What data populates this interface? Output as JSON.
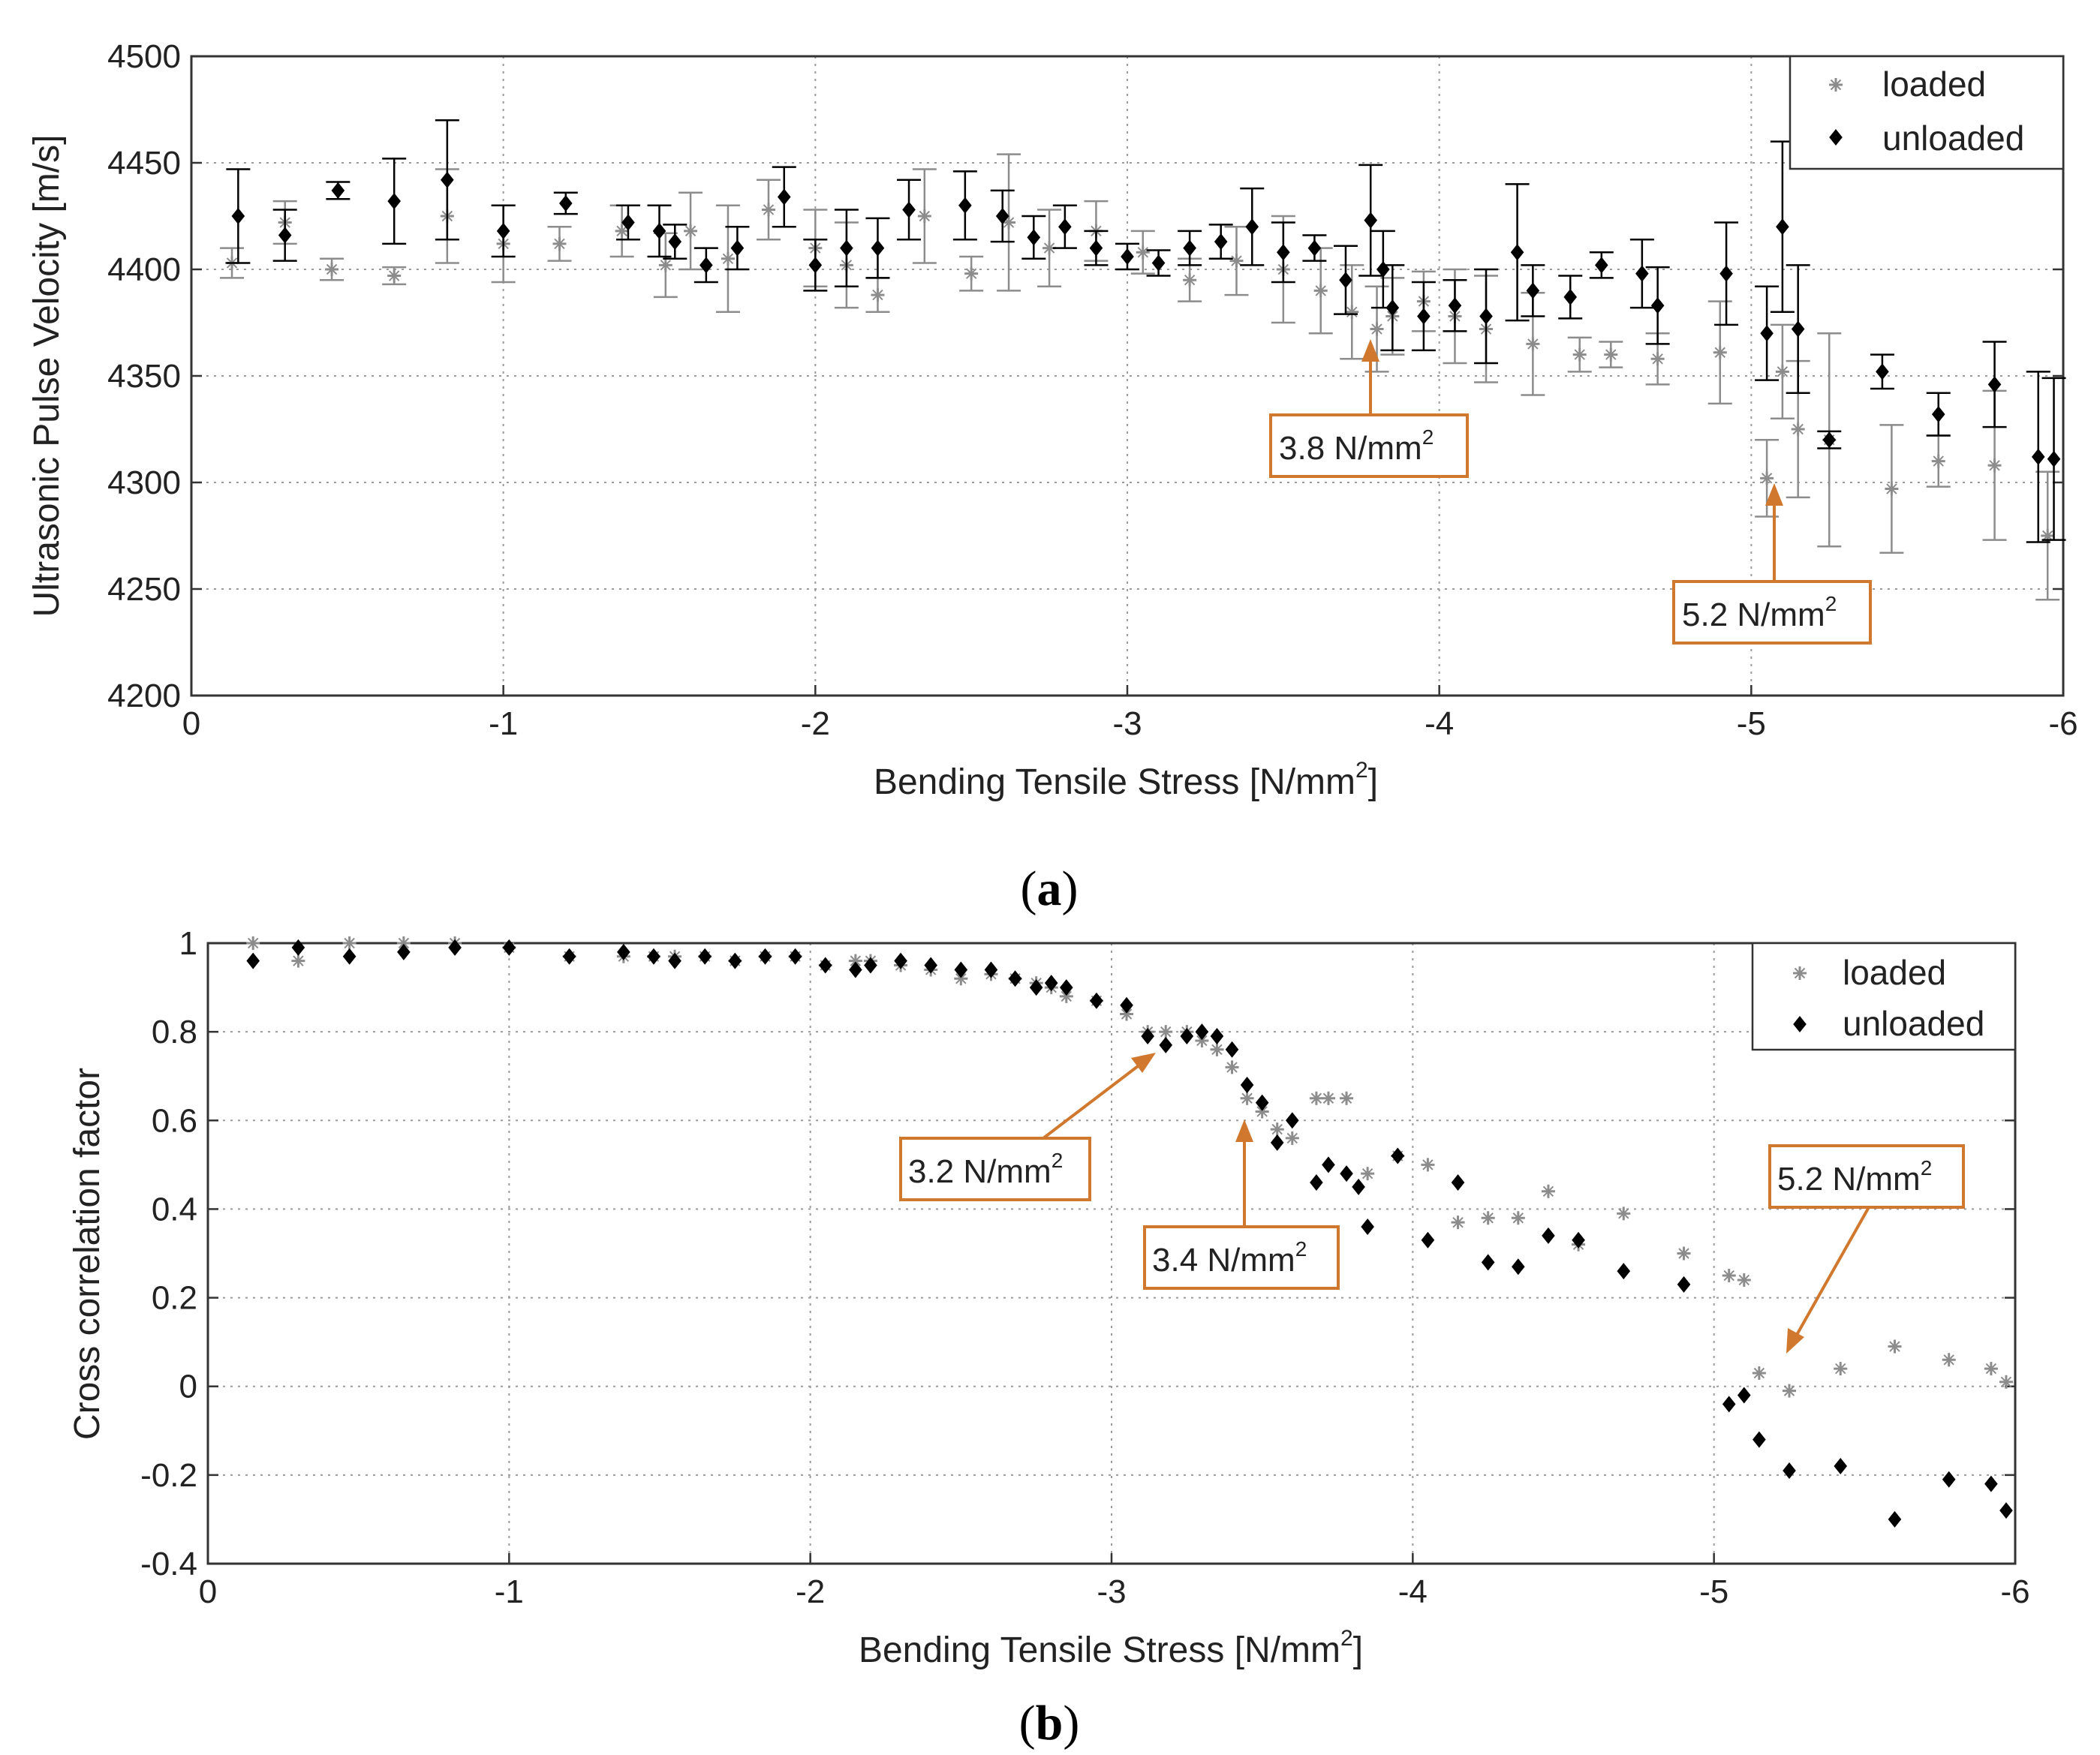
{
  "colors": {
    "loaded": "#8c8c8c",
    "unloaded": "#000000",
    "annotation": "#d0782e",
    "grid": "#9a9a9a"
  },
  "chart_data": [
    {
      "id": "a",
      "type": "scatter",
      "caption_letter": "a",
      "xlabel": "Bending Tensile Stress [N/mm",
      "xlabel_sup": "2",
      "xlabel_end": "]",
      "ylabel": "Ultrasonic Pulse Velocity [m/s]",
      "xlim": [
        0,
        -6
      ],
      "ylim": [
        4200,
        4500
      ],
      "xticks": [
        0,
        -1,
        -2,
        -3,
        -4,
        -5,
        -6
      ],
      "yticks": [
        4200,
        4250,
        4300,
        4350,
        4400,
        4450,
        4500
      ],
      "grid": true,
      "legend": {
        "placement": "top-right",
        "entries": [
          "loaded",
          "unloaded"
        ]
      },
      "series": [
        {
          "name": "loaded",
          "marker": "star",
          "x": [
            -0.13,
            -0.3,
            -0.45,
            -0.65,
            -0.82,
            -1.0,
            -1.18,
            -1.38,
            -1.52,
            -1.6,
            -1.72,
            -1.85,
            -2.0,
            -2.1,
            -2.2,
            -2.35,
            -2.5,
            -2.62,
            -2.75,
            -2.9,
            -3.05,
            -3.2,
            -3.35,
            -3.5,
            -3.62,
            -3.72,
            -3.8,
            -3.85,
            -3.95,
            -4.05,
            -4.15,
            -4.3,
            -4.45,
            -4.55,
            -4.7,
            -4.9,
            -5.05,
            -5.1,
            -5.15,
            -5.25,
            -5.45,
            -5.6,
            -5.78,
            -5.95
          ],
          "y": [
            4403,
            4422,
            4400,
            4397,
            4425,
            4412,
            4412,
            4418,
            4402,
            4418,
            4405,
            4428,
            4410,
            4402,
            4388,
            4425,
            4398,
            4422,
            4410,
            4418,
            4408,
            4395,
            4404,
            4400,
            4390,
            4380,
            4372,
            4378,
            4385,
            4378,
            4372,
            4365,
            4360,
            4360,
            4358,
            4361,
            4302,
            4352,
            4325,
            4320,
            4297,
            4310,
            4308,
            4275
          ],
          "err": [
            7,
            10,
            5,
            4,
            22,
            18,
            8,
            12,
            15,
            18,
            25,
            14,
            18,
            20,
            8,
            22,
            8,
            32,
            18,
            14,
            10,
            10,
            16,
            25,
            20,
            22,
            20,
            18,
            14,
            22,
            25,
            24,
            8,
            6,
            12,
            24,
            18,
            22,
            32,
            50,
            30,
            12,
            35,
            30
          ]
        },
        {
          "name": "unloaded",
          "marker": "diamond",
          "x": [
            -0.15,
            -0.3,
            -0.47,
            -0.65,
            -0.82,
            -1.0,
            -1.2,
            -1.4,
            -1.5,
            -1.55,
            -1.65,
            -1.75,
            -1.9,
            -2.0,
            -2.1,
            -2.2,
            -2.3,
            -2.48,
            -2.6,
            -2.7,
            -2.8,
            -2.9,
            -3.0,
            -3.1,
            -3.2,
            -3.3,
            -3.4,
            -3.5,
            -3.6,
            -3.7,
            -3.78,
            -3.82,
            -3.85,
            -3.95,
            -4.05,
            -4.15,
            -4.25,
            -4.3,
            -4.42,
            -4.52,
            -4.65,
            -4.7,
            -4.92,
            -5.05,
            -5.1,
            -5.15,
            -5.25,
            -5.42,
            -5.6,
            -5.78,
            -5.92,
            -5.97
          ],
          "y": [
            4425,
            4416,
            4437,
            4432,
            4442,
            4418,
            4431,
            4422,
            4418,
            4413,
            4402,
            4410,
            4434,
            4402,
            4410,
            4410,
            4428,
            4430,
            4425,
            4415,
            4420,
            4410,
            4406,
            4403,
            4410,
            4413,
            4420,
            4408,
            4410,
            4395,
            4423,
            4400,
            4382,
            4378,
            4383,
            4378,
            4408,
            4390,
            4387,
            4402,
            4398,
            4383,
            4398,
            4370,
            4420,
            4372,
            4320,
            4352,
            4332,
            4346,
            4312,
            4311
          ],
          "err": [
            22,
            12,
            4,
            20,
            28,
            12,
            5,
            8,
            12,
            8,
            8,
            10,
            14,
            12,
            18,
            14,
            14,
            16,
            12,
            10,
            10,
            8,
            6,
            6,
            8,
            8,
            18,
            14,
            6,
            16,
            26,
            18,
            20,
            16,
            12,
            22,
            32,
            12,
            10,
            6,
            16,
            18,
            24,
            22,
            40,
            30,
            4,
            8,
            10,
            20,
            40,
            38
          ]
        }
      ],
      "annotations": [
        {
          "label": "3.8 N/mm",
          "sup": "2",
          "x": -3.8,
          "y": 4362
        },
        {
          "label": "5.2 N/mm",
          "sup": "2",
          "x": -5.1,
          "y": 4290
        }
      ]
    },
    {
      "id": "b",
      "type": "scatter",
      "caption_letter": "b",
      "xlabel": "Bending Tensile Stress [N/mm",
      "xlabel_sup": "2",
      "xlabel_end": "]",
      "ylabel": "Cross correlation factor",
      "xlim": [
        0,
        -6
      ],
      "ylim": [
        -0.4,
        1
      ],
      "xticks": [
        0,
        -1,
        -2,
        -3,
        -4,
        -5,
        -6
      ],
      "yticks": [
        -0.4,
        -0.2,
        0,
        0.2,
        0.4,
        0.6,
        0.8,
        1
      ],
      "grid": true,
      "legend": {
        "placement": "top-right",
        "entries": [
          "loaded",
          "unloaded"
        ]
      },
      "series": [
        {
          "name": "loaded",
          "marker": "star",
          "x": [
            -0.15,
            -0.3,
            -0.47,
            -0.65,
            -0.82,
            -1.0,
            -1.2,
            -1.38,
            -1.48,
            -1.55,
            -1.65,
            -1.75,
            -1.85,
            -1.95,
            -2.05,
            -2.15,
            -2.2,
            -2.3,
            -2.4,
            -2.5,
            -2.6,
            -2.68,
            -2.75,
            -2.8,
            -2.85,
            -2.95,
            -3.05,
            -3.12,
            -3.18,
            -3.25,
            -3.3,
            -3.35,
            -3.4,
            -3.45,
            -3.5,
            -3.55,
            -3.6,
            -3.68,
            -3.72,
            -3.78,
            -3.85,
            -3.95,
            -4.05,
            -4.15,
            -4.25,
            -4.35,
            -4.45,
            -4.55,
            -4.7,
            -4.9,
            -5.05,
            -5.1,
            -5.15,
            -5.25,
            -5.42,
            -5.6,
            -5.78,
            -5.92,
            -5.97
          ],
          "y": [
            1.0,
            0.96,
            1.0,
            1.0,
            1.0,
            0.99,
            0.97,
            0.97,
            0.97,
            0.97,
            0.97,
            0.96,
            0.97,
            0.97,
            0.95,
            0.96,
            0.96,
            0.95,
            0.94,
            0.92,
            0.93,
            0.92,
            0.91,
            0.9,
            0.88,
            0.87,
            0.84,
            0.8,
            0.8,
            0.8,
            0.78,
            0.76,
            0.72,
            0.65,
            0.62,
            0.58,
            0.56,
            0.65,
            0.65,
            0.65,
            0.48,
            0.52,
            0.5,
            0.37,
            0.38,
            0.38,
            0.44,
            0.32,
            0.39,
            0.3,
            0.25,
            0.24,
            0.03,
            -0.01,
            0.04,
            0.09,
            0.06,
            0.04,
            0.01
          ]
        },
        {
          "name": "unloaded",
          "marker": "diamond",
          "x": [
            -0.15,
            -0.3,
            -0.47,
            -0.65,
            -0.82,
            -1.0,
            -1.2,
            -1.38,
            -1.48,
            -1.55,
            -1.65,
            -1.75,
            -1.85,
            -1.95,
            -2.05,
            -2.15,
            -2.2,
            -2.3,
            -2.4,
            -2.5,
            -2.6,
            -2.68,
            -2.75,
            -2.8,
            -2.85,
            -2.95,
            -3.05,
            -3.12,
            -3.18,
            -3.25,
            -3.3,
            -3.35,
            -3.4,
            -3.45,
            -3.5,
            -3.55,
            -3.6,
            -3.68,
            -3.72,
            -3.78,
            -3.82,
            -3.85,
            -3.95,
            -4.05,
            -4.15,
            -4.25,
            -4.35,
            -4.45,
            -4.55,
            -4.7,
            -4.9,
            -5.05,
            -5.1,
            -5.15,
            -5.25,
            -5.42,
            -5.6,
            -5.78,
            -5.92,
            -5.97
          ],
          "y": [
            0.96,
            0.99,
            0.97,
            0.98,
            0.99,
            0.99,
            0.97,
            0.98,
            0.97,
            0.96,
            0.97,
            0.96,
            0.97,
            0.97,
            0.95,
            0.94,
            0.95,
            0.96,
            0.95,
            0.94,
            0.94,
            0.92,
            0.9,
            0.91,
            0.9,
            0.87,
            0.86,
            0.79,
            0.77,
            0.79,
            0.8,
            0.79,
            0.76,
            0.68,
            0.64,
            0.55,
            0.6,
            0.46,
            0.5,
            0.48,
            0.45,
            0.36,
            0.52,
            0.33,
            0.46,
            0.28,
            0.27,
            0.34,
            0.33,
            0.26,
            0.23,
            -0.04,
            -0.02,
            -0.12,
            -0.19,
            -0.18,
            -0.3,
            -0.21,
            -0.22,
            -0.28
          ]
        }
      ],
      "annotations": [
        {
          "label": "3.2 N/mm",
          "sup": "2",
          "x": -3.15,
          "y": 0.77
        },
        {
          "label": "3.4 N/mm",
          "sup": "2",
          "x": -3.42,
          "y": 0.65
        },
        {
          "label": "5.2 N/mm",
          "sup": "2",
          "x": -5.2,
          "y": 0.06
        }
      ]
    }
  ]
}
